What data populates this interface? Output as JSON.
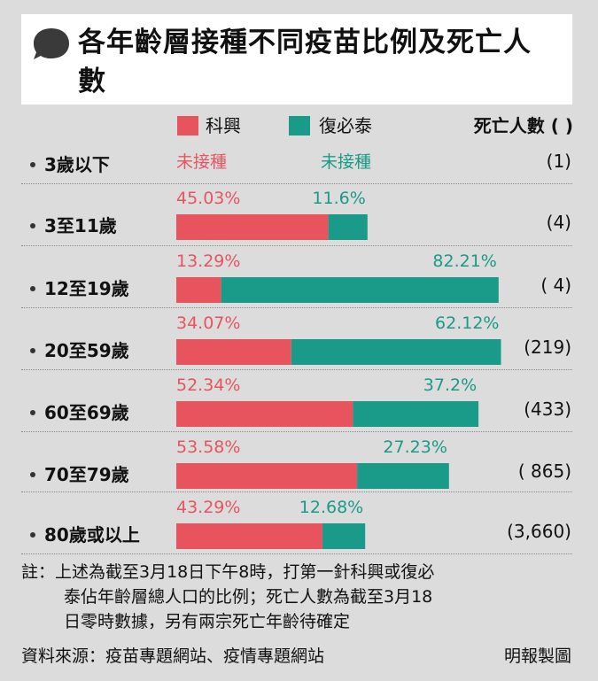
{
  "title": "各年齡層接種不同疫苗比例及死亡人數",
  "legend": {
    "sinovac": "科興",
    "biontech": "復必泰",
    "deaths": "死亡人數 ( )"
  },
  "colors": {
    "sinovac": "#e8545e",
    "biontech": "#1a9a88"
  },
  "chart_data": {
    "type": "bar",
    "title": "各年齡層接種不同疫苗比例及死亡人數",
    "categories": [
      "3歲以下",
      "3至11歲",
      "12至19歲",
      "20至59歲",
      "60至69歲",
      "70至79歲",
      "80歲或以上"
    ],
    "series": [
      {
        "name": "科興",
        "values": [
          null,
          45.03,
          13.29,
          34.07,
          52.34,
          53.58,
          43.29
        ]
      },
      {
        "name": "復必泰",
        "values": [
          null,
          11.6,
          82.21,
          62.12,
          37.2,
          27.23,
          12.68
        ]
      }
    ],
    "percent_labels": {
      "科興": [
        "未接種",
        "45.03%",
        "13.29%",
        "34.07%",
        "52.34%",
        "53.58%",
        "43.29%"
      ],
      "復必泰": [
        "未接種",
        "11.6%",
        "82.21%",
        "62.12%",
        "37.2%",
        "27.23%",
        "12.68%"
      ]
    },
    "deaths": [
      "(1)",
      "(4)",
      "( 4)",
      "(219)",
      "(433)",
      "( 865)",
      "(3,660)"
    ],
    "ylim": [
      0,
      100
    ]
  },
  "note": {
    "line1": "註：上述為截至3月18日下午8時，打第一針科興或復必",
    "line2": "泰佔年齡層總人口的比例；死亡人數為截至3月18",
    "line3": "日零時數據，另有兩宗死亡年齡待確定"
  },
  "source": "資料來源：疫苗專題網站、疫情專題網站",
  "credit": "明報製圖"
}
